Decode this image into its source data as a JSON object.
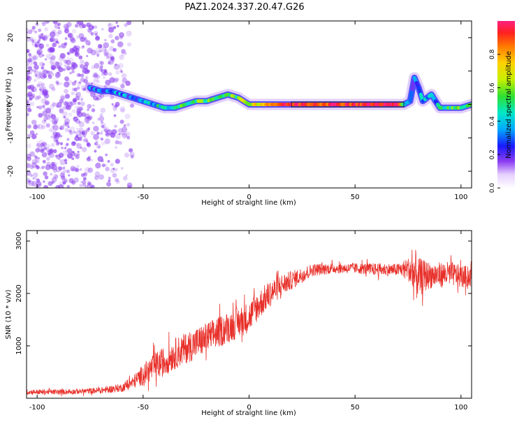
{
  "title": "PAZ1.2024.337.20.47.G26",
  "colors": {
    "snr_line": "#e8302a",
    "ridge_color": "#e83030",
    "speckle": "#8a3cf0"
  },
  "chart_data": [
    {
      "type": "heatmap",
      "xlabel": "Height of straight line (km)",
      "ylabel": "Frequency (Hz)",
      "xlim": [
        -105,
        105
      ],
      "ylim": [
        -25,
        25
      ],
      "xticks": [
        -100,
        -50,
        0,
        50,
        100
      ],
      "yticks": [
        -20,
        -10,
        0,
        10,
        20
      ],
      "grid": false,
      "colorbar": {
        "label": "Normalized spectral amplitude",
        "ticks": [
          0.0,
          0.2,
          0.4,
          0.6,
          0.8
        ],
        "range": [
          0,
          1
        ]
      },
      "ridge": {
        "x": [
          -75,
          -70,
          -65,
          -60,
          -55,
          -50,
          -45,
          -40,
          -35,
          -30,
          -25,
          -20,
          -15,
          -10,
          -5,
          0,
          5,
          10,
          20,
          30,
          40,
          50,
          60,
          70,
          73,
          76,
          78,
          80,
          82,
          84,
          86,
          88,
          90,
          95,
          100,
          105
        ],
        "freq": [
          5,
          4,
          4,
          3,
          2,
          1,
          0,
          -1,
          -1,
          0,
          1,
          1,
          2,
          3,
          2,
          0,
          0,
          0,
          0,
          0,
          0,
          0,
          0,
          0,
          0,
          1,
          8,
          5,
          1,
          2,
          3,
          1,
          -1,
          -1,
          -1,
          0
        ],
        "amplitude": [
          0.3,
          0.3,
          0.3,
          0.35,
          0.3,
          0.35,
          0.4,
          0.45,
          0.45,
          0.5,
          0.55,
          0.5,
          0.55,
          0.6,
          0.55,
          0.65,
          0.75,
          0.85,
          0.95,
          0.95,
          0.95,
          0.95,
          0.95,
          0.95,
          0.6,
          0.35,
          0.25,
          0.3,
          0.35,
          0.35,
          0.35,
          0.35,
          0.45,
          0.5,
          0.6,
          0.5
        ]
      }
    },
    {
      "type": "line",
      "xlabel": "Height of straight line (km)",
      "ylabel": "SNR (10 * v/v)",
      "xlim": [
        -105,
        105
      ],
      "ylim": [
        0,
        3200
      ],
      "xticks": [
        -100,
        -50,
        0,
        50,
        100
      ],
      "yticks": [
        1000,
        2000,
        3000
      ],
      "grid": false,
      "series": [
        {
          "x": [
            -105,
            -100,
            -90,
            -80,
            -70,
            -60,
            -55,
            -50,
            -45,
            -40,
            -35,
            -30,
            -25,
            -20,
            -15,
            -10,
            -5,
            0,
            5,
            10,
            15,
            20,
            25,
            30,
            40,
            50,
            60,
            70,
            75,
            78,
            80,
            85,
            90,
            95,
            100,
            105
          ],
          "values": [
            120,
            120,
            120,
            130,
            150,
            200,
            300,
            450,
            600,
            700,
            850,
            950,
            1050,
            1150,
            1250,
            1350,
            1450,
            1550,
            1800,
            2000,
            2150,
            2250,
            2350,
            2450,
            2480,
            2480,
            2460,
            2450,
            2480,
            2350,
            2300,
            2350,
            2350,
            2380,
            2320,
            2320
          ],
          "noise": [
            50,
            50,
            50,
            50,
            60,
            80,
            120,
            200,
            260,
            280,
            300,
            300,
            300,
            300,
            300,
            300,
            300,
            300,
            280,
            260,
            220,
            180,
            150,
            120,
            100,
            100,
            120,
            120,
            200,
            550,
            380,
            260,
            250,
            230,
            220,
            200
          ]
        }
      ]
    }
  ]
}
